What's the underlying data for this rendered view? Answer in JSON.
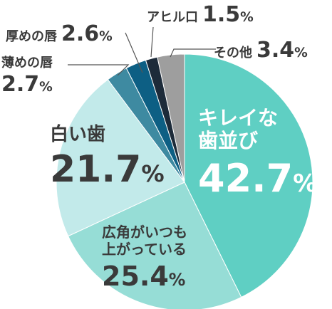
{
  "chart_data": {
    "type": "pie",
    "categories": [
      "キレイな歯並び",
      "広角がいつも上がっている",
      "白い歯",
      "薄めの唇",
      "厚めの唇",
      "アヒル口",
      "その他"
    ],
    "values": [
      42.7,
      25.4,
      21.7,
      2.7,
      2.6,
      1.5,
      3.4
    ],
    "colors": [
      "#5fcfc3",
      "#96ddd6",
      "#c2eaea",
      "#3e8aa1",
      "#0d5f84",
      "#1d2b3a",
      "#9e9e9e"
    ],
    "labels": {
      "teeth_row": {
        "line1": "キレイな",
        "line2": "歯並び",
        "num": "42.7",
        "unit": "%"
      },
      "mouth_corners": {
        "line1": "広角がいつも",
        "line2": "上がっている",
        "num": "25.4",
        "unit": "%"
      },
      "white_teeth": {
        "line1": "白い歯",
        "num": "21.7",
        "unit": "%"
      },
      "thin_lips": {
        "line1": "薄めの唇",
        "num": "2.7",
        "unit": "%"
      },
      "thick_lips": {
        "line1": "厚めの唇",
        "num": "2.6",
        "unit": "%"
      },
      "duck_mouth": {
        "line1": "アヒル口",
        "num": "1.5",
        "unit": "%"
      },
      "other": {
        "line1": "その他",
        "num": "3.4",
        "unit": "%"
      }
    }
  }
}
